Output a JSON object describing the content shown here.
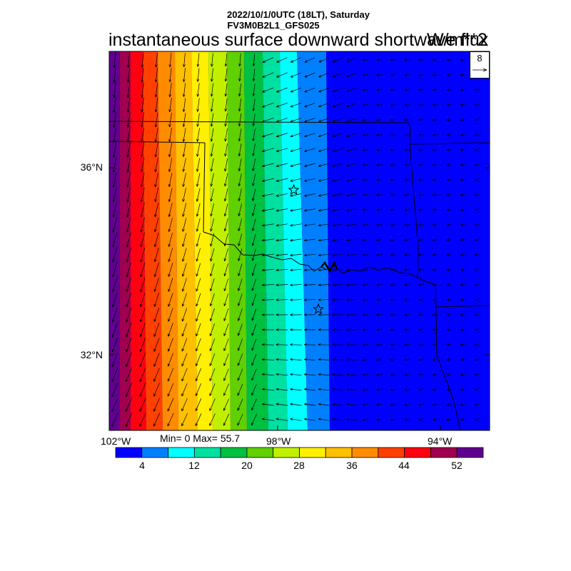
{
  "header": {
    "line1": "2022/10/1/0UTC (18LT), Saturday",
    "line2": "FV3M0B2L1_GFS025",
    "title": "instantaneous surface downward shortwave flux",
    "units": "W/m**2"
  },
  "map": {
    "lon_range": [
      -102.0,
      -92.6
    ],
    "lat_range": [
      30.4,
      38.0
    ],
    "lat_labels": [
      "36°N",
      "32°N"
    ],
    "lon_labels": [
      "102°W",
      "98°W",
      "94°W"
    ],
    "stars": [
      {
        "lon": -97.44,
        "lat": 35.22
      },
      {
        "lon": -96.83,
        "lat": 32.83
      }
    ]
  },
  "field": {
    "name": "instantaneous surface downward shortwave flux",
    "min": 0,
    "max": 55.7,
    "minmax_text": "Min= 0 Max= 55.7"
  },
  "colorbar": {
    "levels": [
      4,
      8,
      12,
      16,
      20,
      24,
      28,
      32,
      36,
      40,
      44,
      48,
      52
    ],
    "tick_labels": [
      "4",
      "12",
      "20",
      "28",
      "36",
      "44",
      "52"
    ],
    "colors": [
      "#0000ff",
      "#0080ff",
      "#00ffff",
      "#00e0a0",
      "#00c040",
      "#60d000",
      "#c0f000",
      "#ffef00",
      "#ffc000",
      "#ff8c00",
      "#ff4000",
      "#ff0010",
      "#a00050",
      "#600090"
    ]
  },
  "vector_reference": {
    "label": "8"
  },
  "colors": {
    "border": "#000000",
    "arrow": "#000000"
  }
}
